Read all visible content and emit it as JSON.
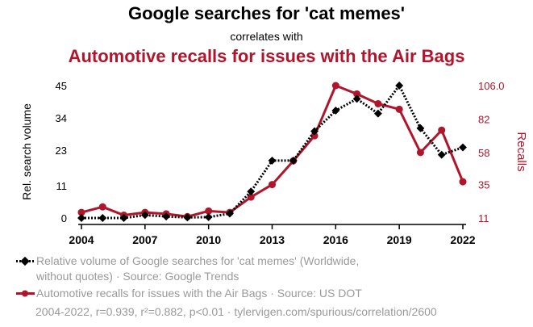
{
  "header": {
    "title": "Google searches for 'cat memes'",
    "subtitle": "correlates with",
    "title2": "Automotive recalls for issues with the Air Bags"
  },
  "legend": {
    "series1": "Relative volume of Google searches for 'cat memes' (Worldwide, without quotes) · Source: Google Trends",
    "series2": "Automotive recalls for issues with the Air Bags · Source: US DOT"
  },
  "footer": "2004-2022, r=0.939, r²=0.882, p<0.01 · tylervigen.com/spurious/correlation/2600",
  "colors": {
    "series1": "#000000",
    "series2": "#b0152b"
  },
  "chart_data": {
    "type": "line",
    "x": [
      2004,
      2005,
      2006,
      2007,
      2008,
      2009,
      2010,
      2011,
      2012,
      2013,
      2014,
      2015,
      2016,
      2017,
      2018,
      2019,
      2020,
      2021,
      2022
    ],
    "xticks": [
      "2004",
      "2007",
      "2010",
      "2013",
      "2016",
      "2019",
      "2022"
    ],
    "ylabel_left": "Rel. search volume",
    "ylabel_right": "Recalls",
    "yticks_left": [
      "0",
      "11",
      "23",
      "34",
      "45"
    ],
    "yticks_right": [
      "11",
      "35",
      "58",
      "82",
      "106.0"
    ],
    "ylim_left": [
      0,
      45
    ],
    "ylim_right": [
      11,
      106
    ],
    "series": [
      {
        "name": "Relative volume of Google searches for 'cat memes'",
        "axis": "left",
        "marker": "diamond",
        "style": "dotted",
        "values": [
          0,
          0,
          0,
          1,
          0.5,
          0.2,
          0.3,
          1.5,
          9,
          19.5,
          19.5,
          29.5,
          36.5,
          40.5,
          35.5,
          45,
          30.5,
          21.5,
          24
        ]
      },
      {
        "name": "Automotive recalls for issues with the Air Bags",
        "axis": "right",
        "marker": "circle",
        "style": "solid",
        "values": [
          15,
          19,
          13,
          15,
          14,
          12,
          16,
          15,
          26,
          35,
          52,
          70,
          106,
          100,
          93,
          89,
          58,
          74,
          37
        ]
      }
    ]
  }
}
